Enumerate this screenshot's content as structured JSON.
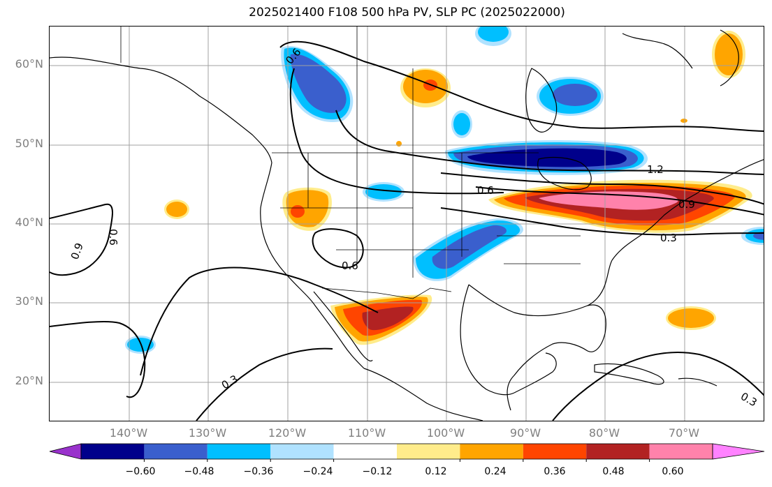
{
  "title": "2025021400 F108 500 hPa PV, SLP PC (2025022000)",
  "lat_labels": [
    "60°N",
    "50°N",
    "40°N",
    "30°N",
    "20°N"
  ],
  "lon_labels": [
    "140°W",
    "130°W",
    "120°W",
    "110°W",
    "100°W",
    "90°W",
    "80°W",
    "70°W"
  ],
  "contour_labels": [
    "0.6",
    "0.6",
    "0.6",
    "0.9",
    "0.6",
    "0.3",
    "1.2",
    "0.9",
    "0.3",
    "0.3"
  ],
  "colorbar": {
    "ticks": [
      "−0.60",
      "−0.48",
      "−0.36",
      "−0.24",
      "−0.12",
      "0.12",
      "0.24",
      "0.36",
      "0.48",
      "0.60"
    ],
    "colors": [
      "#9932cc",
      "#00008b",
      "#3a5fcd",
      "#00bfff",
      "#b0e2ff",
      "#ffffff",
      "#ffec8b",
      "#ffa500",
      "#ff4500",
      "#b22222",
      "#ff82ab",
      "#ff82ff"
    ]
  },
  "colors": {
    "positive_weak": "#ffec8b",
    "positive_mid": "#ffa500",
    "positive_strong": "#ff4500",
    "positive_stronger": "#b22222",
    "positive_max": "#ff82ab",
    "negative_weak": "#b0e2ff",
    "negative_mid": "#00bfff",
    "negative_strong": "#3a5fcd",
    "negative_max": "#00008b",
    "gridline": "#a0a0a0",
    "coastline": "#000000",
    "axis_label": "#7f7f7f"
  }
}
